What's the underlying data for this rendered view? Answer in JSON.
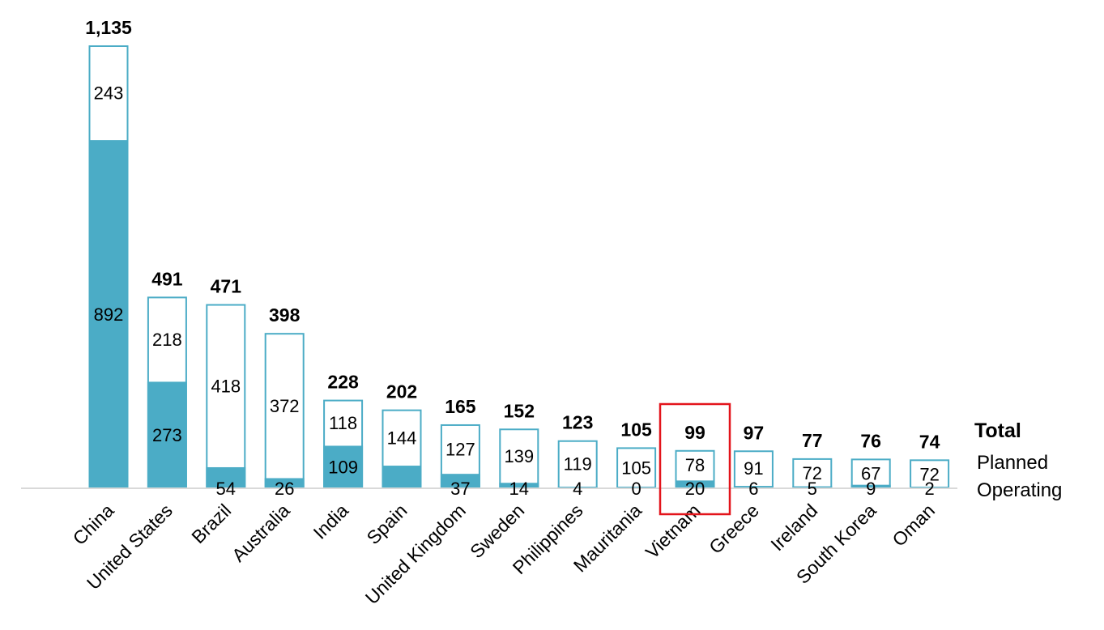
{
  "chart_data": {
    "type": "bar",
    "stacked": true,
    "categories": [
      "China",
      "United States",
      "Brazil",
      "Australia",
      "India",
      "Spain",
      "United Kingdom",
      "Sweden",
      "Philippines",
      "Mauritania",
      "Vietnam",
      "Greece",
      "Ireland",
      "South Korea",
      "Oman"
    ],
    "series": [
      {
        "name": "Operating",
        "values": [
          892,
          273,
          54,
          26,
          109,
          58,
          37,
          14,
          4,
          0,
          20,
          6,
          5,
          9,
          2
        ],
        "labels": [
          "892",
          "273",
          "54",
          "26",
          "109",
          "",
          "37",
          "14",
          "4",
          "0",
          "20",
          "6",
          "5",
          "9",
          "2"
        ]
      },
      {
        "name": "Planned",
        "values": [
          243,
          218,
          418,
          372,
          118,
          144,
          127,
          139,
          119,
          105,
          78,
          91,
          72,
          67,
          72
        ]
      }
    ],
    "totals": [
      "1,135",
      "491",
      "471",
      "398",
      "228",
      "202",
      "165",
      "152",
      "123",
      "105",
      "99",
      "97",
      "77",
      "76",
      "74"
    ],
    "total_values": [
      1135,
      491,
      471,
      398,
      228,
      202,
      165,
      152,
      123,
      105,
      99,
      97,
      77,
      76,
      74
    ],
    "legend": {
      "total": "Total",
      "planned": "Planned",
      "operating": "Operating",
      "placement": "right"
    },
    "highlight": {
      "category": "Vietnam",
      "color": "#e3141b"
    },
    "colors": {
      "operating": "#4bacc6",
      "planned_fill": "#ffffff",
      "planned_border": "#4bacc6",
      "axis": "#d9d9d9"
    },
    "ylim": [
      0,
      1135
    ],
    "grid": false
  }
}
